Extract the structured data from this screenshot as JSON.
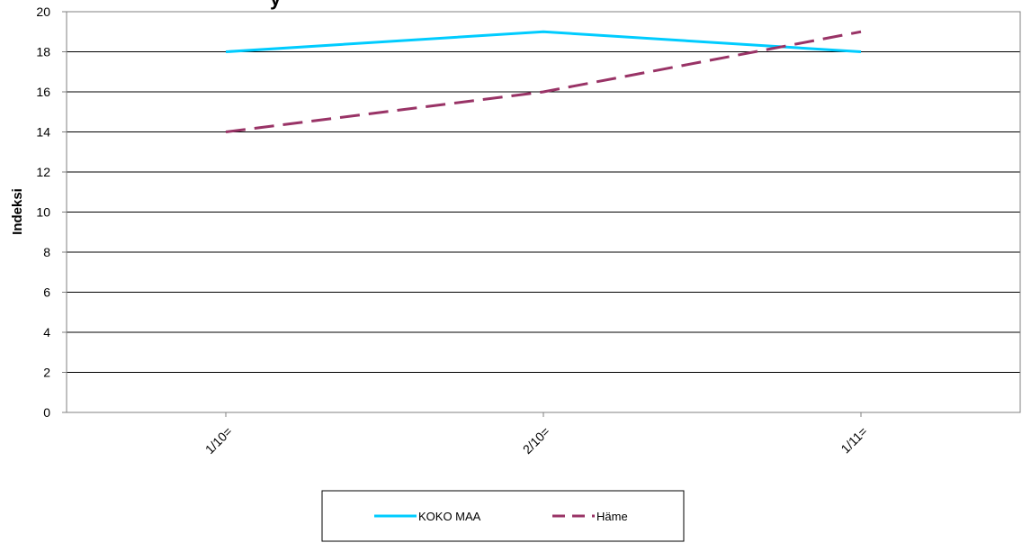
{
  "chart_data": {
    "type": "line",
    "title_fragment": "y",
    "ylabel": "Indeksi",
    "xlabel": "",
    "categories": [
      "1/10=",
      "2/10=",
      "1/11="
    ],
    "ylim": [
      0,
      20
    ],
    "yticks": [
      0,
      2,
      4,
      6,
      8,
      10,
      12,
      14,
      16,
      18,
      20
    ],
    "grid": true,
    "legend": "bottom",
    "series": [
      {
        "name": "KOKO MAA",
        "values": [
          18,
          19,
          18
        ],
        "color": "#00ccff",
        "style": "solid"
      },
      {
        "name": "Häme",
        "values": [
          14,
          16,
          19
        ],
        "color": "#993366",
        "style": "dashed"
      }
    ]
  }
}
